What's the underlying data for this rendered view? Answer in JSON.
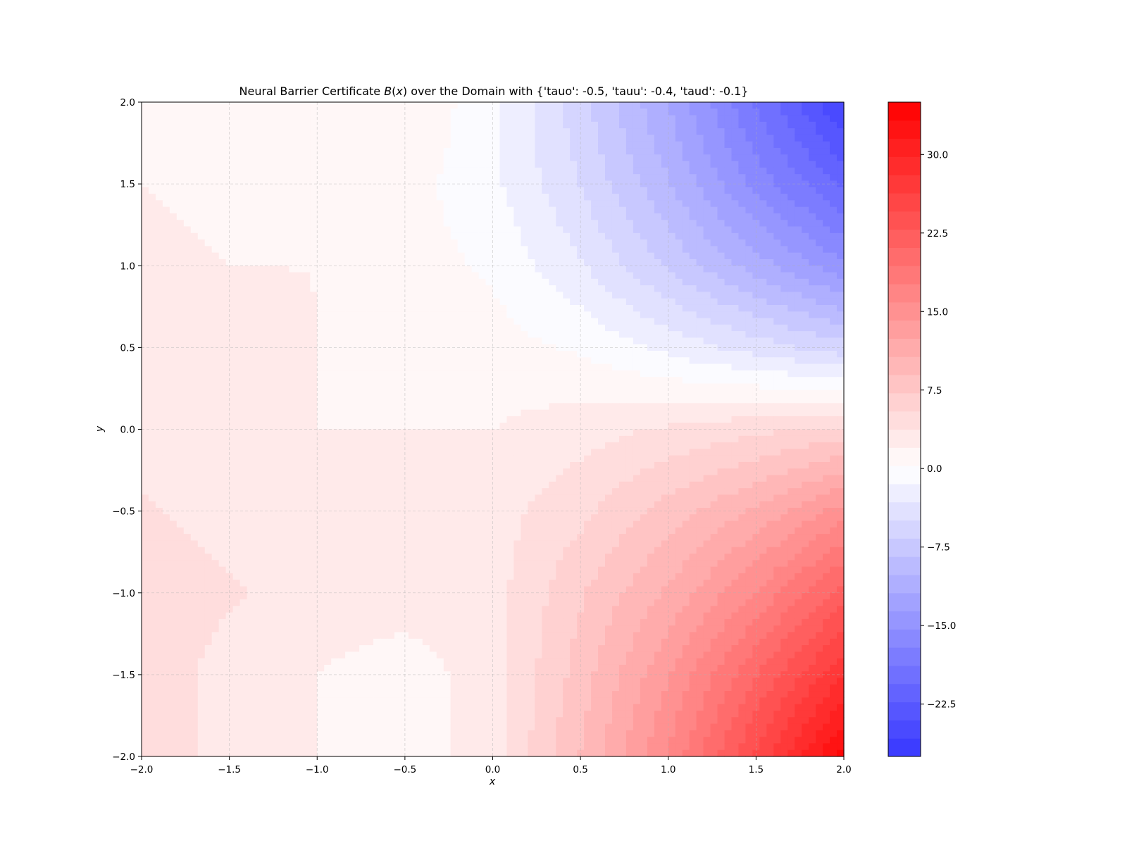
{
  "chart_data": {
    "type": "heatmap",
    "subtype": "filled-contour",
    "title_prefix": "Neural Barrier Certificate ",
    "title_math": "B",
    "title_math_arg": "x",
    "title_suffix": " over the Domain with {'tauo': -0.5, 'tauu': -0.4, 'taud': -0.1}",
    "xlabel": "x",
    "ylabel": "y",
    "xlim": [
      -2.0,
      2.0
    ],
    "ylim": [
      -2.0,
      2.0
    ],
    "x_ticks": [
      -2.0,
      -1.5,
      -1.0,
      -0.5,
      0.0,
      0.5,
      1.0,
      1.5,
      2.0
    ],
    "y_ticks": [
      -2.0,
      -1.5,
      -1.0,
      -0.5,
      0.0,
      0.5,
      1.0,
      1.5,
      2.0
    ],
    "x_tick_labels": [
      "−2.0",
      "−1.5",
      "−1.0",
      "−0.5",
      "0.0",
      "0.5",
      "1.0",
      "1.5",
      "2.0"
    ],
    "y_tick_labels": [
      "−2.0",
      "−1.5",
      "−1.0",
      "−0.5",
      "0.0",
      "0.5",
      "1.0",
      "1.5",
      "2.0"
    ],
    "grid": true,
    "colormap": "bwr",
    "colorbar": {
      "vmin": -27.5,
      "vmax": 35.0,
      "levels": 36,
      "ticks": [
        30.0,
        22.5,
        15.0,
        7.5,
        0.0,
        -7.5,
        -15.0,
        -22.5
      ],
      "tick_labels": [
        "30.0",
        "22.5",
        "15.0",
        "7.5",
        "0.0",
        "−7.5",
        "−15.0",
        "−22.5"
      ]
    },
    "grid_x": [
      -2.0,
      -1.5,
      -1.0,
      -0.5,
      0.0,
      0.5,
      1.0,
      1.5,
      2.0
    ],
    "grid_y": [
      2.0,
      1.5,
      1.0,
      0.5,
      0.0,
      -0.5,
      -1.0,
      -1.5,
      -2.0
    ],
    "z_values": [
      [
        1,
        1,
        2,
        2,
        -1,
        -6,
        -12,
        -19,
        -26
      ],
      [
        2,
        1,
        1,
        1,
        -1,
        -5,
        -10,
        -16,
        -21
      ],
      [
        3,
        2,
        2,
        1,
        0,
        -3,
        -7,
        -11,
        -15
      ],
      [
        3,
        3,
        2,
        1,
        1,
        0,
        -2,
        -4,
        -6
      ],
      [
        3,
        3,
        2,
        2,
        2,
        3,
        4,
        5,
        6
      ],
      [
        4,
        3,
        3,
        3,
        3,
        5,
        8,
        11,
        15
      ],
      [
        5,
        4,
        3,
        3,
        3,
        7,
        11,
        16,
        22
      ],
      [
        5,
        3,
        2,
        1,
        3,
        8,
        14,
        21,
        28
      ],
      [
        5,
        3,
        2,
        1,
        3,
        9,
        16,
        25,
        34
      ]
    ]
  }
}
